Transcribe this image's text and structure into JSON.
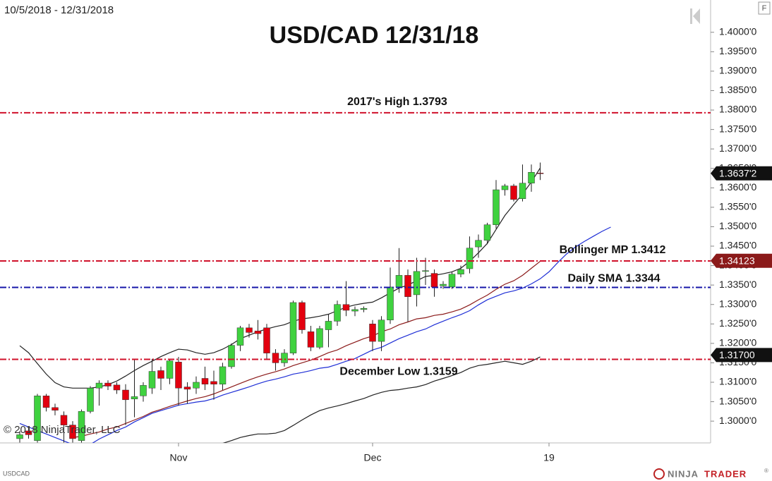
{
  "chart_data": {
    "type": "candlestick",
    "date_range": "10/5/2018 - 12/31/2018",
    "title": "USD/CAD 12/31/18",
    "copyright": "© 2018 NinjaTrader, LLC",
    "symbol": "USDCAD",
    "toolbar_label": "F",
    "brand": [
      "NINJA",
      "TRADER",
      "®"
    ],
    "up_color": "#3fd23f",
    "down_color": "#e3000f",
    "ylim": [
      1.2944,
      1.4083
    ],
    "yticks": [
      {
        "value": 1.3,
        "label": "1.3000'0"
      },
      {
        "value": 1.305,
        "label": "1.3050'0"
      },
      {
        "value": 1.31,
        "label": "1.3100'0"
      },
      {
        "value": 1.315,
        "label": "1.3150'0"
      },
      {
        "value": 1.32,
        "label": "1.3200'0"
      },
      {
        "value": 1.325,
        "label": "1.3250'0"
      },
      {
        "value": 1.33,
        "label": "1.3300'0"
      },
      {
        "value": 1.335,
        "label": "1.3350'0"
      },
      {
        "value": 1.34,
        "label": "1.3400'0"
      },
      {
        "value": 1.345,
        "label": "1.3450'0"
      },
      {
        "value": 1.35,
        "label": "1.3500'0"
      },
      {
        "value": 1.355,
        "label": "1.3550'0"
      },
      {
        "value": 1.36,
        "label": "1.3600'0"
      },
      {
        "value": 1.365,
        "label": "1.3650'0"
      },
      {
        "value": 1.37,
        "label": "1.3700'0"
      },
      {
        "value": 1.375,
        "label": "1.3750'0"
      },
      {
        "value": 1.38,
        "label": "1.3800'0"
      },
      {
        "value": 1.385,
        "label": "1.3850'0"
      },
      {
        "value": 1.39,
        "label": "1.3900'0"
      },
      {
        "value": 1.395,
        "label": "1.3950'0"
      },
      {
        "value": 1.4,
        "label": "1.4000'0"
      }
    ],
    "categories": [
      null,
      null,
      null,
      null,
      null,
      null,
      null,
      null,
      null,
      null,
      null,
      null,
      null,
      null,
      null,
      null,
      null,
      null,
      "Nov",
      null,
      null,
      null,
      null,
      null,
      null,
      null,
      null,
      null,
      null,
      null,
      null,
      null,
      null,
      null,
      null,
      null,
      null,
      null,
      null,
      null,
      "Dec",
      null,
      null,
      null,
      null,
      null,
      null,
      null,
      null,
      null,
      null,
      null,
      null,
      null,
      null,
      null,
      null,
      null,
      null,
      null,
      "19",
      null,
      null,
      null,
      null,
      null,
      null,
      null,
      null,
      null,
      null,
      null,
      null,
      null,
      null,
      null,
      null,
      null,
      null
    ],
    "open": [
      1.2955,
      1.2975,
      1.295,
      1.3065,
      1.3035,
      1.3015,
      1.299,
      1.295,
      1.3025,
      1.3085,
      1.3098,
      1.3093,
      1.308,
      1.3057,
      1.3065,
      1.3085,
      1.313,
      1.311,
      1.3152,
      1.3088,
      1.3085,
      1.311,
      1.3102,
      1.3095,
      1.314,
      1.3195,
      1.324,
      1.3232,
      1.324,
      1.3175,
      1.315,
      1.3175,
      1.3305,
      1.323,
      1.319,
      1.3235,
      1.3257,
      1.33,
      1.3283,
      1.3287,
      1.325,
      1.3205,
      1.326,
      1.3345,
      1.3375,
      1.3325,
      1.3385,
      1.338,
      1.3348,
      1.3345,
      1.3378,
      1.3392,
      1.3448,
      1.3465,
      1.3505,
      1.3595,
      1.3605,
      1.3572,
      1.3612,
      1.3638,
      null,
      null,
      null,
      null,
      null,
      null,
      null,
      null,
      null,
      null,
      null,
      null,
      null,
      null,
      null,
      null,
      null,
      null,
      null
    ],
    "high": [
      1.2975,
      1.2985,
      1.307,
      1.307,
      1.3045,
      1.3025,
      1.3,
      1.303,
      1.309,
      1.3105,
      1.3105,
      1.31,
      1.3095,
      1.316,
      1.31,
      1.316,
      1.314,
      1.316,
      1.3165,
      1.31,
      1.3115,
      1.314,
      1.313,
      1.315,
      1.32,
      1.3245,
      1.325,
      1.326,
      1.325,
      1.3185,
      1.3185,
      1.331,
      1.331,
      1.3245,
      1.3245,
      1.3275,
      1.331,
      1.336,
      1.3295,
      1.3295,
      1.326,
      1.327,
      1.3395,
      1.3445,
      1.339,
      1.342,
      1.342,
      1.339,
      1.336,
      1.3385,
      1.34,
      1.3475,
      1.348,
      1.351,
      1.362,
      1.361,
      1.361,
      1.366,
      1.366,
      1.3665,
      null,
      null,
      null,
      null,
      null,
      null,
      null,
      null,
      null,
      null,
      null,
      null,
      null,
      null,
      null,
      null,
      null,
      null,
      null
    ],
    "low": [
      1.2945,
      1.2955,
      1.2945,
      1.3025,
      1.3015,
      1.2945,
      1.2945,
      1.2945,
      1.302,
      1.304,
      1.308,
      1.307,
      1.299,
      1.301,
      1.305,
      1.307,
      1.308,
      1.3095,
      1.304,
      1.3045,
      1.307,
      1.308,
      1.3055,
      1.308,
      1.3135,
      1.318,
      1.3215,
      1.321,
      1.316,
      1.313,
      1.314,
      1.317,
      1.3225,
      1.318,
      1.3185,
      1.319,
      1.3245,
      1.327,
      1.327,
      1.328,
      1.318,
      1.318,
      1.325,
      1.333,
      1.3255,
      1.3295,
      1.335,
      1.332,
      1.334,
      1.334,
      1.337,
      1.338,
      1.342,
      1.3455,
      1.3495,
      1.358,
      1.3565,
      1.3565,
      1.359,
      1.362,
      null,
      null,
      null,
      null,
      null,
      null,
      null,
      null,
      null,
      null,
      null,
      null,
      null,
      null,
      null,
      null,
      null,
      null,
      null
    ],
    "close": [
      1.2965,
      1.2965,
      1.3065,
      1.3035,
      1.3028,
      1.299,
      1.2955,
      1.3025,
      1.3085,
      1.3098,
      1.309,
      1.308,
      1.3055,
      1.3063,
      1.3092,
      1.3128,
      1.311,
      1.3155,
      1.3085,
      1.3082,
      1.31,
      1.3095,
      1.3095,
      1.314,
      1.3195,
      1.324,
      1.3228,
      1.3225,
      1.3175,
      1.315,
      1.3175,
      1.3305,
      1.3235,
      1.319,
      1.3238,
      1.3257,
      1.33,
      1.3285,
      1.3287,
      1.329,
      1.3205,
      1.326,
      1.3345,
      1.3375,
      1.332,
      1.3385,
      1.3387,
      1.3345,
      1.3352,
      1.3378,
      1.339,
      1.3445,
      1.3465,
      1.3505,
      1.3595,
      1.3605,
      1.357,
      1.3612,
      1.364,
      1.3637,
      null,
      null,
      null,
      null,
      null,
      null,
      null,
      null,
      null,
      null,
      null,
      null,
      null,
      null,
      null,
      null,
      null,
      null,
      null
    ],
    "series": [
      {
        "color": "#222222",
        "values": [
          1.3194,
          1.3176,
          1.3148,
          1.3121,
          1.3099,
          1.3088,
          1.3085,
          1.3085,
          1.3085,
          1.3088,
          1.3094,
          1.3103,
          1.3116,
          1.313,
          1.3143,
          1.3154,
          1.3166,
          1.3176,
          1.3185,
          1.3183,
          1.3176,
          1.3172,
          1.3176,
          1.3185,
          1.3197,
          1.3212,
          1.3221,
          1.323,
          1.3237,
          1.3243,
          1.3248,
          1.3257,
          1.3263,
          1.3266,
          1.327,
          1.3275,
          1.3284,
          1.3293,
          1.3299,
          1.3303,
          1.3306,
          1.3317,
          1.333,
          1.3342,
          1.335,
          1.3361,
          1.3372,
          1.3375,
          1.3379,
          1.3384,
          1.3393,
          1.3411,
          1.3433,
          1.3457,
          1.3493,
          1.3529,
          1.3557,
          1.3584,
          1.3615,
          1.3651,
          null,
          null,
          null,
          null,
          null,
          null,
          null,
          null,
          null,
          null,
          null,
          null,
          null,
          null,
          null,
          null,
          null,
          null,
          null
        ]
      },
      {
        "color": "#8b1a1a",
        "values": [
          null,
          null,
          null,
          null,
          null,
          null,
          1.2958,
          1.2961,
          1.2967,
          1.2972,
          1.298,
          1.2985,
          1.2994,
          1.3003,
          1.3012,
          1.3023,
          1.303,
          1.3038,
          1.3045,
          1.3052,
          1.3058,
          1.3063,
          1.307,
          1.3079,
          1.3088,
          1.3097,
          1.3106,
          1.3114,
          1.3121,
          1.3127,
          1.3134,
          1.3143,
          1.315,
          1.3157,
          1.3166,
          1.3176,
          1.3183,
          1.3194,
          1.3203,
          1.3212,
          1.3219,
          1.323,
          1.3237,
          1.3248,
          1.3255,
          1.3263,
          1.3266,
          1.3272,
          1.3275,
          1.3281,
          1.3288,
          1.3299,
          1.3312,
          1.3324,
          1.3339,
          1.3352,
          1.3361,
          1.3375,
          1.3393,
          1.3411,
          null,
          null,
          null,
          null,
          null,
          null,
          null,
          null,
          null,
          null,
          null,
          null,
          null,
          null,
          null,
          null,
          null,
          null,
          null
        ]
      },
      {
        "color": "#1f2fd6",
        "values": [
          1.2994,
          1.2985,
          1.2976,
          1.2967,
          1.2958,
          1.2949,
          1.294,
          1.2938,
          1.294,
          1.2954,
          1.2965,
          1.2976,
          1.2985,
          1.2998,
          1.3009,
          1.302,
          1.3027,
          1.3034,
          1.3041,
          1.3045,
          1.3049,
          1.3052,
          1.3058,
          1.3067,
          1.3074,
          1.3081,
          1.3088,
          1.3096,
          1.3103,
          1.3108,
          1.3114,
          1.3121,
          1.3125,
          1.313,
          1.3136,
          1.3139,
          1.3146,
          1.3154,
          1.3161,
          1.3172,
          1.3183,
          1.319,
          1.3201,
          1.3212,
          1.3221,
          1.323,
          1.3237,
          1.3248,
          1.3257,
          1.3266,
          1.3274,
          1.3284,
          1.3299,
          1.3312,
          1.3321,
          1.333,
          1.3335,
          1.3342,
          1.3353,
          1.3366,
          1.3384,
          1.3408,
          1.343,
          1.3448,
          1.3462,
          1.3475,
          1.3488,
          1.3499,
          null,
          null,
          null,
          null,
          null,
          null,
          null,
          null,
          null,
          null,
          null
        ]
      },
      {
        "color": "#222222",
        "values": [
          null,
          null,
          null,
          null,
          null,
          null,
          null,
          null,
          null,
          null,
          null,
          null,
          null,
          null,
          null,
          null,
          null,
          null,
          null,
          null,
          null,
          null,
          null,
          1.2943,
          1.295,
          1.2958,
          1.2963,
          1.2967,
          1.2967,
          1.2969,
          1.2976,
          1.2989,
          1.3003,
          1.3016,
          1.3027,
          1.3034,
          1.3039,
          1.3045,
          1.3052,
          1.3058,
          1.3067,
          1.3074,
          1.3079,
          1.3081,
          1.3085,
          1.3088,
          1.3094,
          1.3103,
          1.311,
          1.3117,
          1.3125,
          1.3136,
          1.3143,
          1.3146,
          1.315,
          1.3154,
          1.315,
          1.3146,
          1.3154,
          1.3165,
          null,
          null,
          null,
          null,
          null,
          null,
          null,
          null,
          null,
          null,
          null,
          null,
          null,
          null,
          null,
          null,
          null,
          null,
          null
        ]
      }
    ],
    "levels": [
      {
        "label": "2017's High 1.3793",
        "value": 1.3793,
        "color": "#d0102a"
      },
      {
        "label": "Bollinger MP 1.3412",
        "value": 1.3412,
        "color": "#d0102a"
      },
      {
        "label": "Daily SMA 1.3344",
        "value": 1.3344,
        "color": "#1616a8"
      },
      {
        "label": "December Low 1.3159",
        "value": 1.3159,
        "color": "#d0102a"
      }
    ],
    "price_markers": [
      {
        "value": 1.36372,
        "label": "1.3637'2",
        "color": "#111111"
      },
      {
        "value": 1.34123,
        "label": "1.34123",
        "color": "#8b1a1a"
      },
      {
        "value": 1.317,
        "label": "1.31700",
        "color": "#111111"
      }
    ]
  }
}
